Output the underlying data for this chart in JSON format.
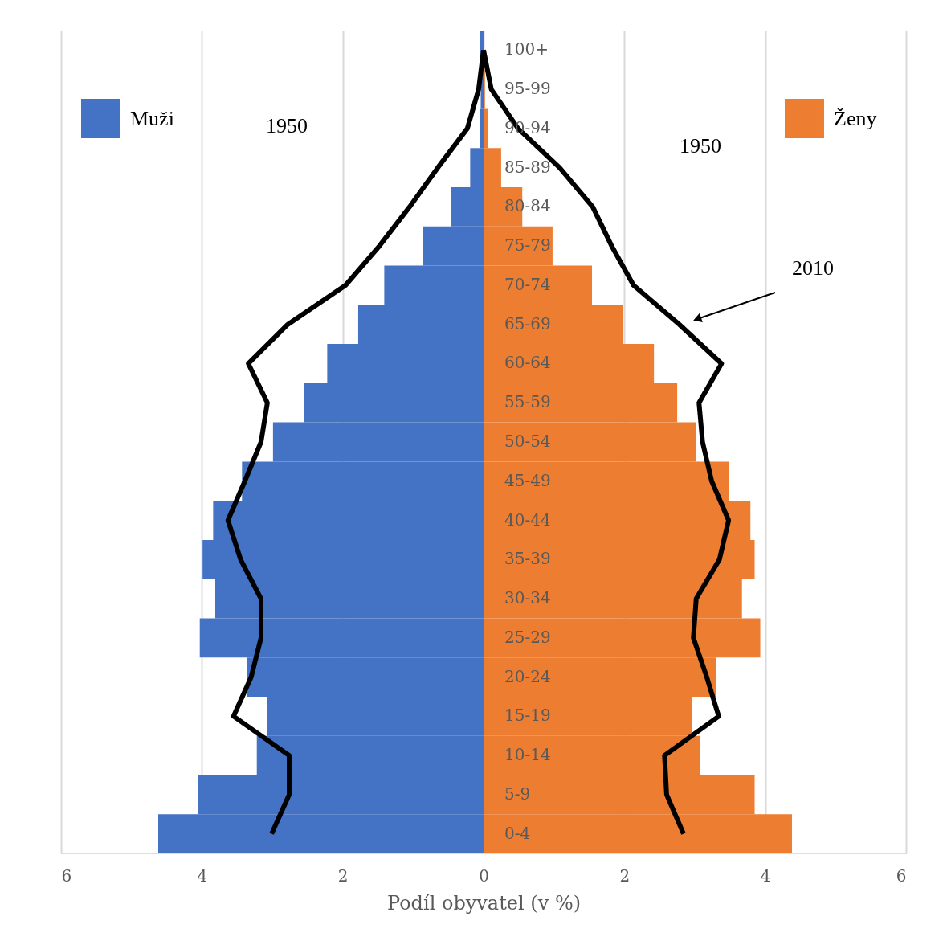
{
  "chart_data": {
    "type": "bar",
    "orientation": "horizontal",
    "xlabel": "Podíl obyvatel (v %)",
    "categories": [
      "100+",
      "95-99",
      "90-94",
      "85-89",
      "80-84",
      "75-79",
      "70-74",
      "65-69",
      "60-64",
      "55-59",
      "50-54",
      "45-49",
      "40-44",
      "35-39",
      "30-34",
      "25-29",
      "20-24",
      "15-19",
      "10-14",
      "5-9",
      "0-4"
    ],
    "series": [
      {
        "name": "Muži",
        "color": "#4472c4",
        "values": [
          -0.05,
          -0.04,
          -0.05,
          -0.19,
          -0.46,
          -0.86,
          -1.41,
          -1.78,
          -2.22,
          -2.55,
          -2.99,
          -3.43,
          -3.84,
          -3.99,
          -3.81,
          -4.03,
          -3.36,
          -3.07,
          -3.22,
          -4.06,
          -4.62
        ]
      },
      {
        "name": "Ženy",
        "color": "#ed7d31",
        "values": [
          0.01,
          0.02,
          0.06,
          0.25,
          0.55,
          0.98,
          1.54,
          1.98,
          2.42,
          2.75,
          3.02,
          3.49,
          3.79,
          3.85,
          3.67,
          3.93,
          3.3,
          2.96,
          3.08,
          3.85,
          4.38
        ]
      },
      {
        "type": "line",
        "color": "#000000",
        "values": [
          0.0,
          -0.07,
          -0.23,
          -0.65,
          -1.05,
          -1.48,
          -1.96,
          -2.78,
          -3.34,
          -3.07,
          -3.16,
          -3.39,
          -3.63,
          -3.45,
          -3.16,
          -3.16,
          -3.3,
          -3.55,
          -2.76,
          -2.76,
          -3.01
        ]
      },
      {
        "type": "line",
        "color": "#000000",
        "values": [
          0.0,
          0.11,
          0.49,
          1.08,
          1.55,
          1.82,
          2.13,
          2.78,
          3.38,
          3.06,
          3.11,
          3.24,
          3.48,
          3.35,
          3.02,
          2.98,
          3.17,
          3.34,
          2.57,
          2.6,
          2.84
        ]
      }
    ],
    "xlim": [
      -6,
      6
    ],
    "xticks": [
      {
        "value": -6,
        "label": "6"
      },
      {
        "value": -4,
        "label": "4"
      },
      {
        "value": -2,
        "label": "2"
      },
      0,
      2,
      4,
      6
    ],
    "grid": "x",
    "legend": "top",
    "stacked": true,
    "annotations": [
      "1950",
      "1950",
      "2010"
    ]
  }
}
